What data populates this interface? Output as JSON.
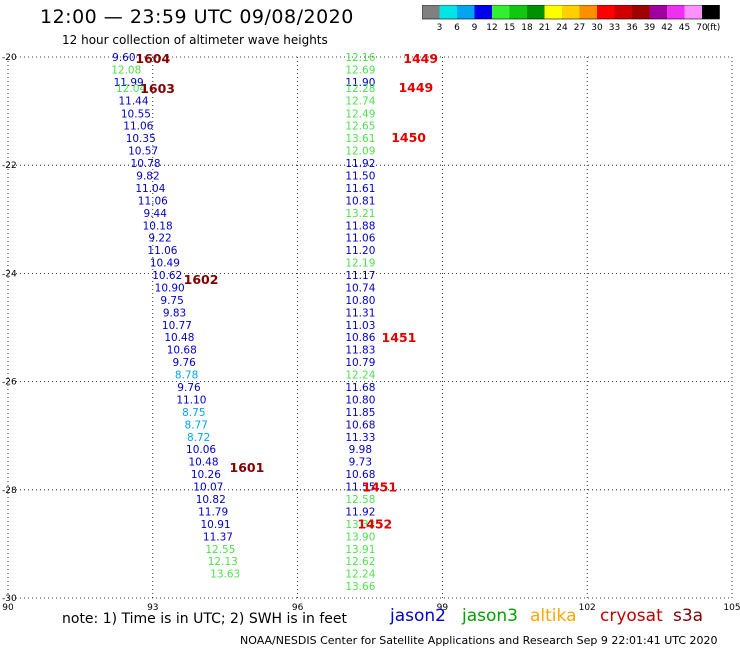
{
  "header": {
    "title": "12:00 — 23:59 UTC 09/08/2020",
    "subtitle": "12 hour collection of altimeter wave heights"
  },
  "colorbar": {
    "colors": [
      "#808080",
      "#00e5e5",
      "#00a5f0",
      "#0000f0",
      "#30f030",
      "#10c810",
      "#009000",
      "#ffff00",
      "#ffd000",
      "#ff9000",
      "#ff0000",
      "#d00000",
      "#a00000",
      "#a000a0",
      "#f030f0",
      "#ff90ff",
      "#000000"
    ],
    "labels": [
      "3",
      "6",
      "9",
      "12",
      "15",
      "18",
      "21",
      "24",
      "27",
      "30",
      "33",
      "36",
      "39",
      "42",
      "45",
      "70"
    ],
    "unit": "(ft)"
  },
  "footer": {
    "note": "note:  1) Time is in UTC;  2) SWH is in feet",
    "credit": "NOAA/NESDIS Center for Satellite Applications and Research     Sep  9 22:01:41 UTC 2020"
  },
  "satellites": [
    {
      "name": "jason2",
      "color": "#0000c8"
    },
    {
      "name": "jason3",
      "color": "#00a000"
    },
    {
      "name": "altika",
      "color": "#ffa500"
    },
    {
      "name": "cryosat",
      "color": "#c00000"
    },
    {
      "name": "s3a",
      "color": "#800000"
    }
  ],
  "chart_data": {
    "type": "scatter",
    "title": "12:00 — 23:59 UTC 09/08/2020",
    "subtitle": "12 hour collection of altimeter wave heights",
    "xlim": [
      90,
      105
    ],
    "ylim": [
      -30,
      -20
    ],
    "x_ticks": [
      "90",
      "93",
      "96",
      "99",
      "102",
      "105"
    ],
    "y_ticks": [
      "-20",
      "-22",
      "-24",
      "-26",
      "-28",
      "-30"
    ],
    "grid": true,
    "legend": "bottom",
    "series": [
      {
        "name": "track-1",
        "points": [
          {
            "x": 92.4,
            "y": -20.0,
            "v": "9.60",
            "c": "#0000c8"
          },
          {
            "x": 92.45,
            "y": -20.23,
            "v": "12.08",
            "c": "#50e050"
          },
          {
            "x": 92.5,
            "y": -20.46,
            "v": "11.99",
            "c": "#0000c8"
          },
          {
            "x": 92.55,
            "y": -20.57,
            "v": "12.04",
            "c": "#50e050"
          },
          {
            "x": 92.6,
            "y": -20.8,
            "v": "11.44",
            "c": "#0000c8"
          },
          {
            "x": 92.65,
            "y": -21.04,
            "v": "10.55",
            "c": "#0000c8"
          },
          {
            "x": 92.7,
            "y": -21.27,
            "v": "11.06",
            "c": "#0000c8"
          },
          {
            "x": 92.75,
            "y": -21.5,
            "v": "10.35",
            "c": "#0000c8"
          },
          {
            "x": 92.8,
            "y": -21.73,
            "v": "10.57",
            "c": "#0000c8"
          },
          {
            "x": 92.85,
            "y": -21.96,
            "v": "10.78",
            "c": "#0000c8"
          },
          {
            "x": 92.9,
            "y": -22.19,
            "v": "9.82",
            "c": "#0000c8"
          },
          {
            "x": 92.95,
            "y": -22.42,
            "v": "11.04",
            "c": "#0000c8"
          },
          {
            "x": 93.0,
            "y": -22.65,
            "v": "11.06",
            "c": "#0000c8"
          },
          {
            "x": 93.05,
            "y": -22.88,
            "v": "9.44",
            "c": "#0000c8"
          },
          {
            "x": 93.1,
            "y": -23.11,
            "v": "10.18",
            "c": "#0000c8"
          },
          {
            "x": 93.15,
            "y": -23.34,
            "v": "9.22",
            "c": "#0000c8"
          },
          {
            "x": 93.2,
            "y": -23.57,
            "v": "11.06",
            "c": "#0000c8"
          },
          {
            "x": 93.25,
            "y": -23.8,
            "v": "10.49",
            "c": "#0000c8"
          },
          {
            "x": 93.3,
            "y": -24.03,
            "v": "10.62",
            "c": "#0000c8"
          },
          {
            "x": 93.35,
            "y": -24.26,
            "v": "10.90",
            "c": "#0000c8"
          },
          {
            "x": 93.4,
            "y": -24.49,
            "v": "9.75",
            "c": "#0000c8"
          },
          {
            "x": 93.45,
            "y": -24.72,
            "v": "9.83",
            "c": "#0000c8"
          },
          {
            "x": 93.5,
            "y": -24.95,
            "v": "10.77",
            "c": "#0000c8"
          },
          {
            "x": 93.55,
            "y": -25.18,
            "v": "10.48",
            "c": "#0000c8"
          },
          {
            "x": 93.6,
            "y": -25.41,
            "v": "10.68",
            "c": "#0000c8"
          },
          {
            "x": 93.65,
            "y": -25.64,
            "v": "9.76",
            "c": "#0000c8"
          },
          {
            "x": 93.7,
            "y": -25.87,
            "v": "8.78",
            "c": "#00a5f0"
          },
          {
            "x": 93.75,
            "y": -26.1,
            "v": "9.76",
            "c": "#0000c8"
          },
          {
            "x": 93.8,
            "y": -26.33,
            "v": "11.10",
            "c": "#0000c8"
          },
          {
            "x": 93.85,
            "y": -26.56,
            "v": "8.75",
            "c": "#00a5f0"
          },
          {
            "x": 93.9,
            "y": -26.79,
            "v": "8.77",
            "c": "#00a5f0"
          },
          {
            "x": 93.95,
            "y": -27.02,
            "v": "8.72",
            "c": "#00a5f0"
          },
          {
            "x": 94.0,
            "y": -27.25,
            "v": "10.06",
            "c": "#0000c8"
          },
          {
            "x": 94.05,
            "y": -27.48,
            "v": "10.48",
            "c": "#0000c8"
          },
          {
            "x": 94.1,
            "y": -27.71,
            "v": "10.26",
            "c": "#0000c8"
          },
          {
            "x": 94.15,
            "y": -27.94,
            "v": "10.07",
            "c": "#0000c8"
          },
          {
            "x": 94.2,
            "y": -28.17,
            "v": "10.82",
            "c": "#0000c8"
          },
          {
            "x": 94.25,
            "y": -28.4,
            "v": "11.79",
            "c": "#0000c8"
          },
          {
            "x": 94.3,
            "y": -28.63,
            "v": "10.91",
            "c": "#0000c8"
          },
          {
            "x": 94.35,
            "y": -28.86,
            "v": "11.37",
            "c": "#0000c8"
          },
          {
            "x": 94.4,
            "y": -29.09,
            "v": "12.55",
            "c": "#50e050"
          },
          {
            "x": 94.45,
            "y": -29.32,
            "v": "12.13",
            "c": "#50e050"
          },
          {
            "x": 94.5,
            "y": -29.55,
            "v": "13.63",
            "c": "#50e050"
          }
        ]
      },
      {
        "name": "track-2",
        "points": [
          {
            "x": 97.3,
            "y": -20.0,
            "v": "12.16",
            "c": "#50e050"
          },
          {
            "x": 97.3,
            "y": -20.23,
            "v": "12.69",
            "c": "#50e050"
          },
          {
            "x": 97.3,
            "y": -20.46,
            "v": "11.90",
            "c": "#0000c8"
          },
          {
            "x": 97.3,
            "y": -20.57,
            "v": "12.28",
            "c": "#50e050"
          },
          {
            "x": 97.3,
            "y": -20.8,
            "v": "12.74",
            "c": "#50e050"
          },
          {
            "x": 97.3,
            "y": -21.04,
            "v": "12.49",
            "c": "#50e050"
          },
          {
            "x": 97.3,
            "y": -21.27,
            "v": "12.65",
            "c": "#50e050"
          },
          {
            "x": 97.3,
            "y": -21.5,
            "v": "13.61",
            "c": "#50e050"
          },
          {
            "x": 97.3,
            "y": -21.73,
            "v": "12.09",
            "c": "#50e050"
          },
          {
            "x": 97.3,
            "y": -21.96,
            "v": "11.92",
            "c": "#0000c8"
          },
          {
            "x": 97.3,
            "y": -22.19,
            "v": "11.50",
            "c": "#0000c8"
          },
          {
            "x": 97.3,
            "y": -22.42,
            "v": "11.61",
            "c": "#0000c8"
          },
          {
            "x": 97.3,
            "y": -22.65,
            "v": "10.81",
            "c": "#0000c8"
          },
          {
            "x": 97.3,
            "y": -22.88,
            "v": "13.21",
            "c": "#50e050"
          },
          {
            "x": 97.3,
            "y": -23.11,
            "v": "11.88",
            "c": "#0000c8"
          },
          {
            "x": 97.3,
            "y": -23.34,
            "v": "11.06",
            "c": "#0000c8"
          },
          {
            "x": 97.3,
            "y": -23.57,
            "v": "11.20",
            "c": "#0000c8"
          },
          {
            "x": 97.3,
            "y": -23.8,
            "v": "12.19",
            "c": "#50e050"
          },
          {
            "x": 97.3,
            "y": -24.03,
            "v": "11.17",
            "c": "#0000c8"
          },
          {
            "x": 97.3,
            "y": -24.26,
            "v": "10.74",
            "c": "#0000c8"
          },
          {
            "x": 97.3,
            "y": -24.49,
            "v": "10.80",
            "c": "#0000c8"
          },
          {
            "x": 97.3,
            "y": -24.72,
            "v": "11.31",
            "c": "#0000c8"
          },
          {
            "x": 97.3,
            "y": -24.95,
            "v": "11.03",
            "c": "#0000c8"
          },
          {
            "x": 97.3,
            "y": -25.18,
            "v": "10.86",
            "c": "#0000c8"
          },
          {
            "x": 97.3,
            "y": -25.41,
            "v": "11.83",
            "c": "#0000c8"
          },
          {
            "x": 97.3,
            "y": -25.64,
            "v": "10.79",
            "c": "#0000c8"
          },
          {
            "x": 97.3,
            "y": -25.87,
            "v": "12.24",
            "c": "#50e050"
          },
          {
            "x": 97.3,
            "y": -26.1,
            "v": "11.68",
            "c": "#0000c8"
          },
          {
            "x": 97.3,
            "y": -26.33,
            "v": "10.80",
            "c": "#0000c8"
          },
          {
            "x": 97.3,
            "y": -26.56,
            "v": "11.85",
            "c": "#0000c8"
          },
          {
            "x": 97.3,
            "y": -26.79,
            "v": "10.68",
            "c": "#0000c8"
          },
          {
            "x": 97.3,
            "y": -27.02,
            "v": "11.33",
            "c": "#0000c8"
          },
          {
            "x": 97.3,
            "y": -27.25,
            "v": "9.98",
            "c": "#0000c8"
          },
          {
            "x": 97.3,
            "y": -27.48,
            "v": "9.73",
            "c": "#0000c8"
          },
          {
            "x": 97.3,
            "y": -27.71,
            "v": "10.68",
            "c": "#0000c8"
          },
          {
            "x": 97.3,
            "y": -27.94,
            "v": "11.55",
            "c": "#0000c8"
          },
          {
            "x": 97.3,
            "y": -28.17,
            "v": "12.58",
            "c": "#50e050"
          },
          {
            "x": 97.3,
            "y": -28.4,
            "v": "11.92",
            "c": "#0000c8"
          },
          {
            "x": 97.3,
            "y": -28.63,
            "v": "13.32",
            "c": "#50e050"
          },
          {
            "x": 97.3,
            "y": -28.86,
            "v": "13.90",
            "c": "#50e050"
          },
          {
            "x": 97.3,
            "y": -29.09,
            "v": "13.91",
            "c": "#50e050"
          },
          {
            "x": 97.3,
            "y": -29.32,
            "v": "12.62",
            "c": "#50e050"
          },
          {
            "x": 97.3,
            "y": -29.55,
            "v": "12.24",
            "c": "#50e050"
          },
          {
            "x": 97.3,
            "y": -29.78,
            "v": "13.66",
            "c": "#50e050"
          }
        ]
      }
    ],
    "pass_labels": [
      {
        "text": "1604",
        "x": 93.0,
        "y": -20.02,
        "c": "#800000"
      },
      {
        "text": "1603",
        "x": 93.1,
        "y": -20.57,
        "c": "#800000"
      },
      {
        "text": "1602",
        "x": 94.0,
        "y": -24.1,
        "c": "#800000"
      },
      {
        "text": "1601",
        "x": 94.95,
        "y": -27.58,
        "c": "#800000"
      },
      {
        "text": "1449",
        "x": 98.55,
        "y": -20.02,
        "c": "#e00000"
      },
      {
        "text": "1449",
        "x": 98.45,
        "y": -20.55,
        "c": "#e00000"
      },
      {
        "text": "1450",
        "x": 98.3,
        "y": -21.48,
        "c": "#e00000"
      },
      {
        "text": "1451",
        "x": 98.1,
        "y": -25.18,
        "c": "#e00000"
      },
      {
        "text": "1451",
        "x": 97.7,
        "y": -27.94,
        "c": "#e00000"
      },
      {
        "text": "1452",
        "x": 97.6,
        "y": -28.62,
        "c": "#e00000"
      }
    ]
  }
}
